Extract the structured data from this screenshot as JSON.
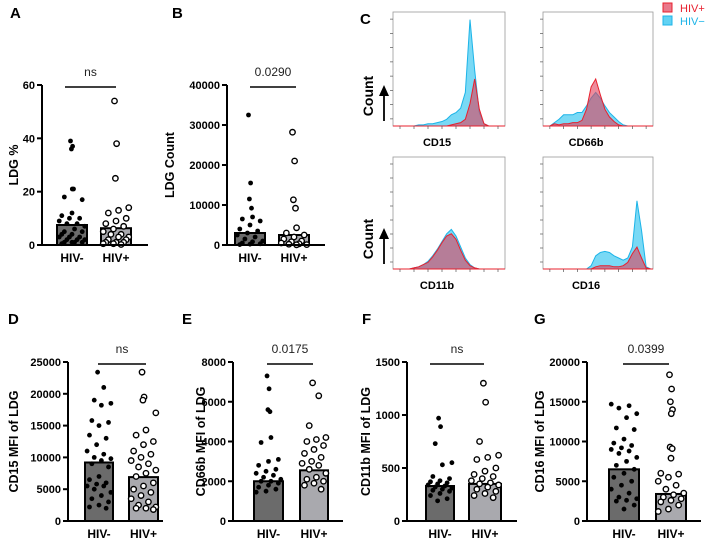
{
  "colors": {
    "hiv_neg_bar": "#6b6b6b",
    "hiv_pos_bar": "#a9a9ae",
    "hist_neg_fill": "#62d2f3",
    "hist_neg_line": "#1cb4e8",
    "hist_pos_fill": "#e0405a",
    "hist_pos_line": "#e8202e"
  },
  "legend": {
    "hiv_pos": "HIV+",
    "hiv_neg": "HIV−"
  },
  "chart_data": [
    {
      "id": "A",
      "type": "bar",
      "panel_label": "A",
      "ylabel": "LDG %",
      "ylim": [
        0,
        60
      ],
      "yticks": [
        "0",
        "20",
        "40",
        "60"
      ],
      "ytick_values": [
        0,
        20,
        40,
        60
      ],
      "categories": [
        "HIV-",
        "HIV+"
      ],
      "significance": "ns",
      "series": [
        {
          "name": "HIV-",
          "mean": 7.5,
          "points": [
            39,
            37,
            36,
            21,
            21,
            18,
            17,
            12,
            11,
            10,
            10,
            9,
            8,
            8,
            7,
            6,
            5,
            5,
            4,
            4,
            3,
            3,
            3,
            2,
            2,
            2,
            1,
            1,
            1,
            1,
            0.5
          ]
        },
        {
          "name": "HIV+",
          "mean": 6.3,
          "points": [
            54,
            38,
            25,
            14,
            13,
            12,
            10,
            9,
            8,
            7,
            6,
            5,
            4,
            4,
            3,
            3,
            2,
            2,
            1,
            1,
            1,
            0.5,
            0.5,
            0.2
          ]
        }
      ]
    },
    {
      "id": "B",
      "type": "bar",
      "panel_label": "B",
      "ylabel": "LDG Count",
      "ylim": [
        0,
        40000
      ],
      "yticks": [
        "0",
        "10000",
        "20000",
        "30000",
        "40000"
      ],
      "ytick_values": [
        0,
        10000,
        20000,
        30000,
        40000
      ],
      "categories": [
        "HIV-",
        "HIV+"
      ],
      "significance": "0.0290",
      "series": [
        {
          "name": "HIV-",
          "mean": 3000,
          "points": [
            32500,
            15500,
            11500,
            9200,
            7000,
            6500,
            6000,
            5000,
            4000,
            3500,
            3000,
            2500,
            2000,
            1500,
            1000,
            800,
            500,
            300,
            200,
            100
          ]
        },
        {
          "name": "HIV+",
          "mean": 2500,
          "points": [
            28200,
            21000,
            11300,
            9200,
            4300,
            3000,
            2500,
            2000,
            1500,
            1000,
            800,
            500,
            300,
            200,
            100,
            50
          ]
        }
      ]
    },
    {
      "id": "C",
      "type": "histogram",
      "panel_label": "C",
      "ylabel": "Count",
      "panels": [
        {
          "marker": "CD15",
          "hiv_neg": [
            0,
            0,
            0,
            0,
            0,
            0.01,
            0.01,
            0.02,
            0.02,
            0.03,
            0.04,
            0.06,
            0.1,
            0.12,
            0.16,
            0.3,
            0.95,
            0.5,
            0.12,
            0.02,
            0,
            0,
            0,
            0
          ],
          "hiv_pos": [
            0,
            0,
            0,
            0,
            0,
            0,
            0,
            0,
            0,
            0,
            0,
            0,
            0.01,
            0.02,
            0.03,
            0.06,
            0.2,
            0.42,
            0.15,
            0.02,
            0,
            0,
            0,
            0
          ]
        },
        {
          "marker": "CD66b",
          "hiv_neg": [
            0,
            0,
            0.03,
            0.06,
            0.1,
            0.1,
            0.1,
            0.12,
            0.12,
            0.18,
            0.25,
            0.3,
            0.25,
            0.18,
            0.12,
            0.08,
            0.04,
            0.01,
            0,
            0,
            0,
            0,
            0,
            0
          ],
          "hiv_pos": [
            0,
            0,
            0.02,
            0.01,
            0.02,
            0.02,
            0.03,
            0.03,
            0.05,
            0.15,
            0.35,
            0.42,
            0.28,
            0.15,
            0.08,
            0.04,
            0.01,
            0,
            0,
            0,
            0,
            0,
            0,
            0
          ]
        },
        {
          "marker": "CD11b",
          "hiv_neg": [
            0,
            0,
            0,
            0,
            0.01,
            0.02,
            0.04,
            0.07,
            0.12,
            0.18,
            0.25,
            0.32,
            0.36,
            0.3,
            0.2,
            0.1,
            0.04,
            0.01,
            0,
            0,
            0,
            0,
            0,
            0
          ],
          "hiv_pos": [
            0,
            0,
            0,
            0,
            0.01,
            0.02,
            0.04,
            0.06,
            0.11,
            0.17,
            0.24,
            0.3,
            0.32,
            0.27,
            0.17,
            0.08,
            0.03,
            0.01,
            0,
            0,
            0,
            0,
            0,
            0
          ]
        },
        {
          "marker": "CD16",
          "hiv_neg": [
            0,
            0,
            0,
            0,
            0,
            0,
            0,
            0,
            0,
            0,
            0.03,
            0.12,
            0.15,
            0.16,
            0.15,
            0.12,
            0.1,
            0.08,
            0.1,
            0.2,
            0.62,
            0.35,
            0.02,
            0
          ],
          "hiv_pos": [
            0,
            0,
            0,
            0,
            0,
            0,
            0,
            0,
            0,
            0,
            0,
            0.02,
            0.03,
            0.03,
            0.03,
            0.02,
            0.02,
            0.03,
            0.06,
            0.14,
            0.2,
            0.1,
            0.01,
            0
          ]
        }
      ]
    },
    {
      "id": "D",
      "type": "bar",
      "panel_label": "D",
      "ylabel": "CD15 MFI of LDG",
      "ylim": [
        0,
        25000
      ],
      "yticks": [
        "0",
        "5000",
        "10000",
        "15000",
        "20000",
        "25000"
      ],
      "ytick_values": [
        0,
        5000,
        10000,
        15000,
        20000,
        25000
      ],
      "categories": [
        "HIV-",
        "HIV+"
      ],
      "significance": "ns",
      "series": [
        {
          "name": "HIV-",
          "mean": 9200,
          "points": [
            23400,
            21000,
            19000,
            18500,
            18200,
            15800,
            15500,
            15000,
            13500,
            13000,
            12000,
            11000,
            10500,
            10000,
            9800,
            9500,
            9000,
            8500,
            7000,
            6500,
            6000,
            5800,
            5500,
            5500,
            5000,
            4500,
            4000,
            3500,
            3000,
            2500,
            2200,
            2000
          ]
        },
        {
          "name": "HIV+",
          "mean": 6900,
          "points": [
            23400,
            19500,
            19000,
            17000,
            14300,
            13500,
            12500,
            12000,
            11000,
            10500,
            10000,
            9500,
            9000,
            8500,
            8000,
            7500,
            7000,
            6000,
            5500,
            5000,
            4500,
            4000,
            3500,
            3000,
            2500,
            2200,
            2000,
            2000,
            1800
          ]
        }
      ]
    },
    {
      "id": "E",
      "type": "bar",
      "panel_label": "E",
      "ylabel": "CD66b MFI of LDG",
      "ylim": [
        0,
        8000
      ],
      "yticks": [
        "0",
        "2000",
        "4000",
        "6000",
        "8000"
      ],
      "ytick_values": [
        0,
        2000,
        4000,
        6000,
        8000
      ],
      "categories": [
        "HIV-",
        "HIV+"
      ],
      "significance": "0.0175",
      "series": [
        {
          "name": "HIV-",
          "mean": 2000,
          "points": [
            7300,
            6650,
            5600,
            5500,
            4200,
            3950,
            3100,
            3000,
            2800,
            2600,
            2500,
            2400,
            2300,
            2200,
            2100,
            2000,
            2000,
            1900,
            1800,
            1700,
            1600,
            1500,
            1450
          ]
        },
        {
          "name": "HIV+",
          "mean": 2550,
          "points": [
            6950,
            6300,
            4800,
            4200,
            4100,
            4000,
            3800,
            3600,
            3400,
            3200,
            3000,
            2900,
            2800,
            2600,
            2400,
            2200,
            2100,
            2000,
            1900,
            1800,
            1600
          ]
        }
      ]
    },
    {
      "id": "F",
      "type": "bar",
      "panel_label": "F",
      "ylabel": "CD11b MFI of LDG",
      "ylim": [
        0,
        1500
      ],
      "yticks": [
        "0",
        "500",
        "1000",
        "1500"
      ],
      "ytick_values": [
        0,
        500,
        1000,
        1500
      ],
      "categories": [
        "HIV-",
        "HIV+"
      ],
      "significance": "ns",
      "series": [
        {
          "name": "HIV-",
          "mean": 330,
          "points": [
            970,
            890,
            730,
            550,
            530,
            420,
            400,
            380,
            370,
            360,
            350,
            340,
            330,
            320,
            310,
            300,
            290,
            280,
            260,
            240,
            210,
            190
          ]
        },
        {
          "name": "HIV+",
          "mean": 350,
          "points": [
            1300,
            1120,
            750,
            620,
            600,
            580,
            500,
            470,
            440,
            420,
            400,
            380,
            360,
            350,
            340,
            320,
            300,
            280,
            260,
            240,
            220
          ]
        }
      ]
    },
    {
      "id": "G",
      "type": "bar",
      "panel_label": "G",
      "ylabel": "CD16 MFI of LDG",
      "ylim": [
        0,
        20000
      ],
      "yticks": [
        "0",
        "5000",
        "10000",
        "15000",
        "20000"
      ],
      "ytick_values": [
        0,
        5000,
        10000,
        15000,
        20000
      ],
      "categories": [
        "HIV-",
        "HIV+"
      ],
      "significance": "0.0399",
      "series": [
        {
          "name": "HIV-",
          "mean": 6500,
          "points": [
            14700,
            14500,
            14200,
            13500,
            13000,
            11700,
            11500,
            10300,
            9800,
            9500,
            9200,
            9000,
            8800,
            8500,
            8000,
            7500,
            7000,
            6500,
            6000,
            5500,
            5000,
            4500,
            4000,
            3500,
            3000,
            2800,
            2600,
            2500,
            2000,
            1500
          ]
        },
        {
          "name": "HIV+",
          "mean": 3400,
          "points": [
            18400,
            16600,
            15000,
            14000,
            13500,
            9300,
            9100,
            7900,
            6000,
            5900,
            5500,
            5000,
            4500,
            4000,
            3500,
            3300,
            3000,
            2800,
            2600,
            2400,
            2000,
            1500,
            1200
          ]
        }
      ]
    }
  ]
}
